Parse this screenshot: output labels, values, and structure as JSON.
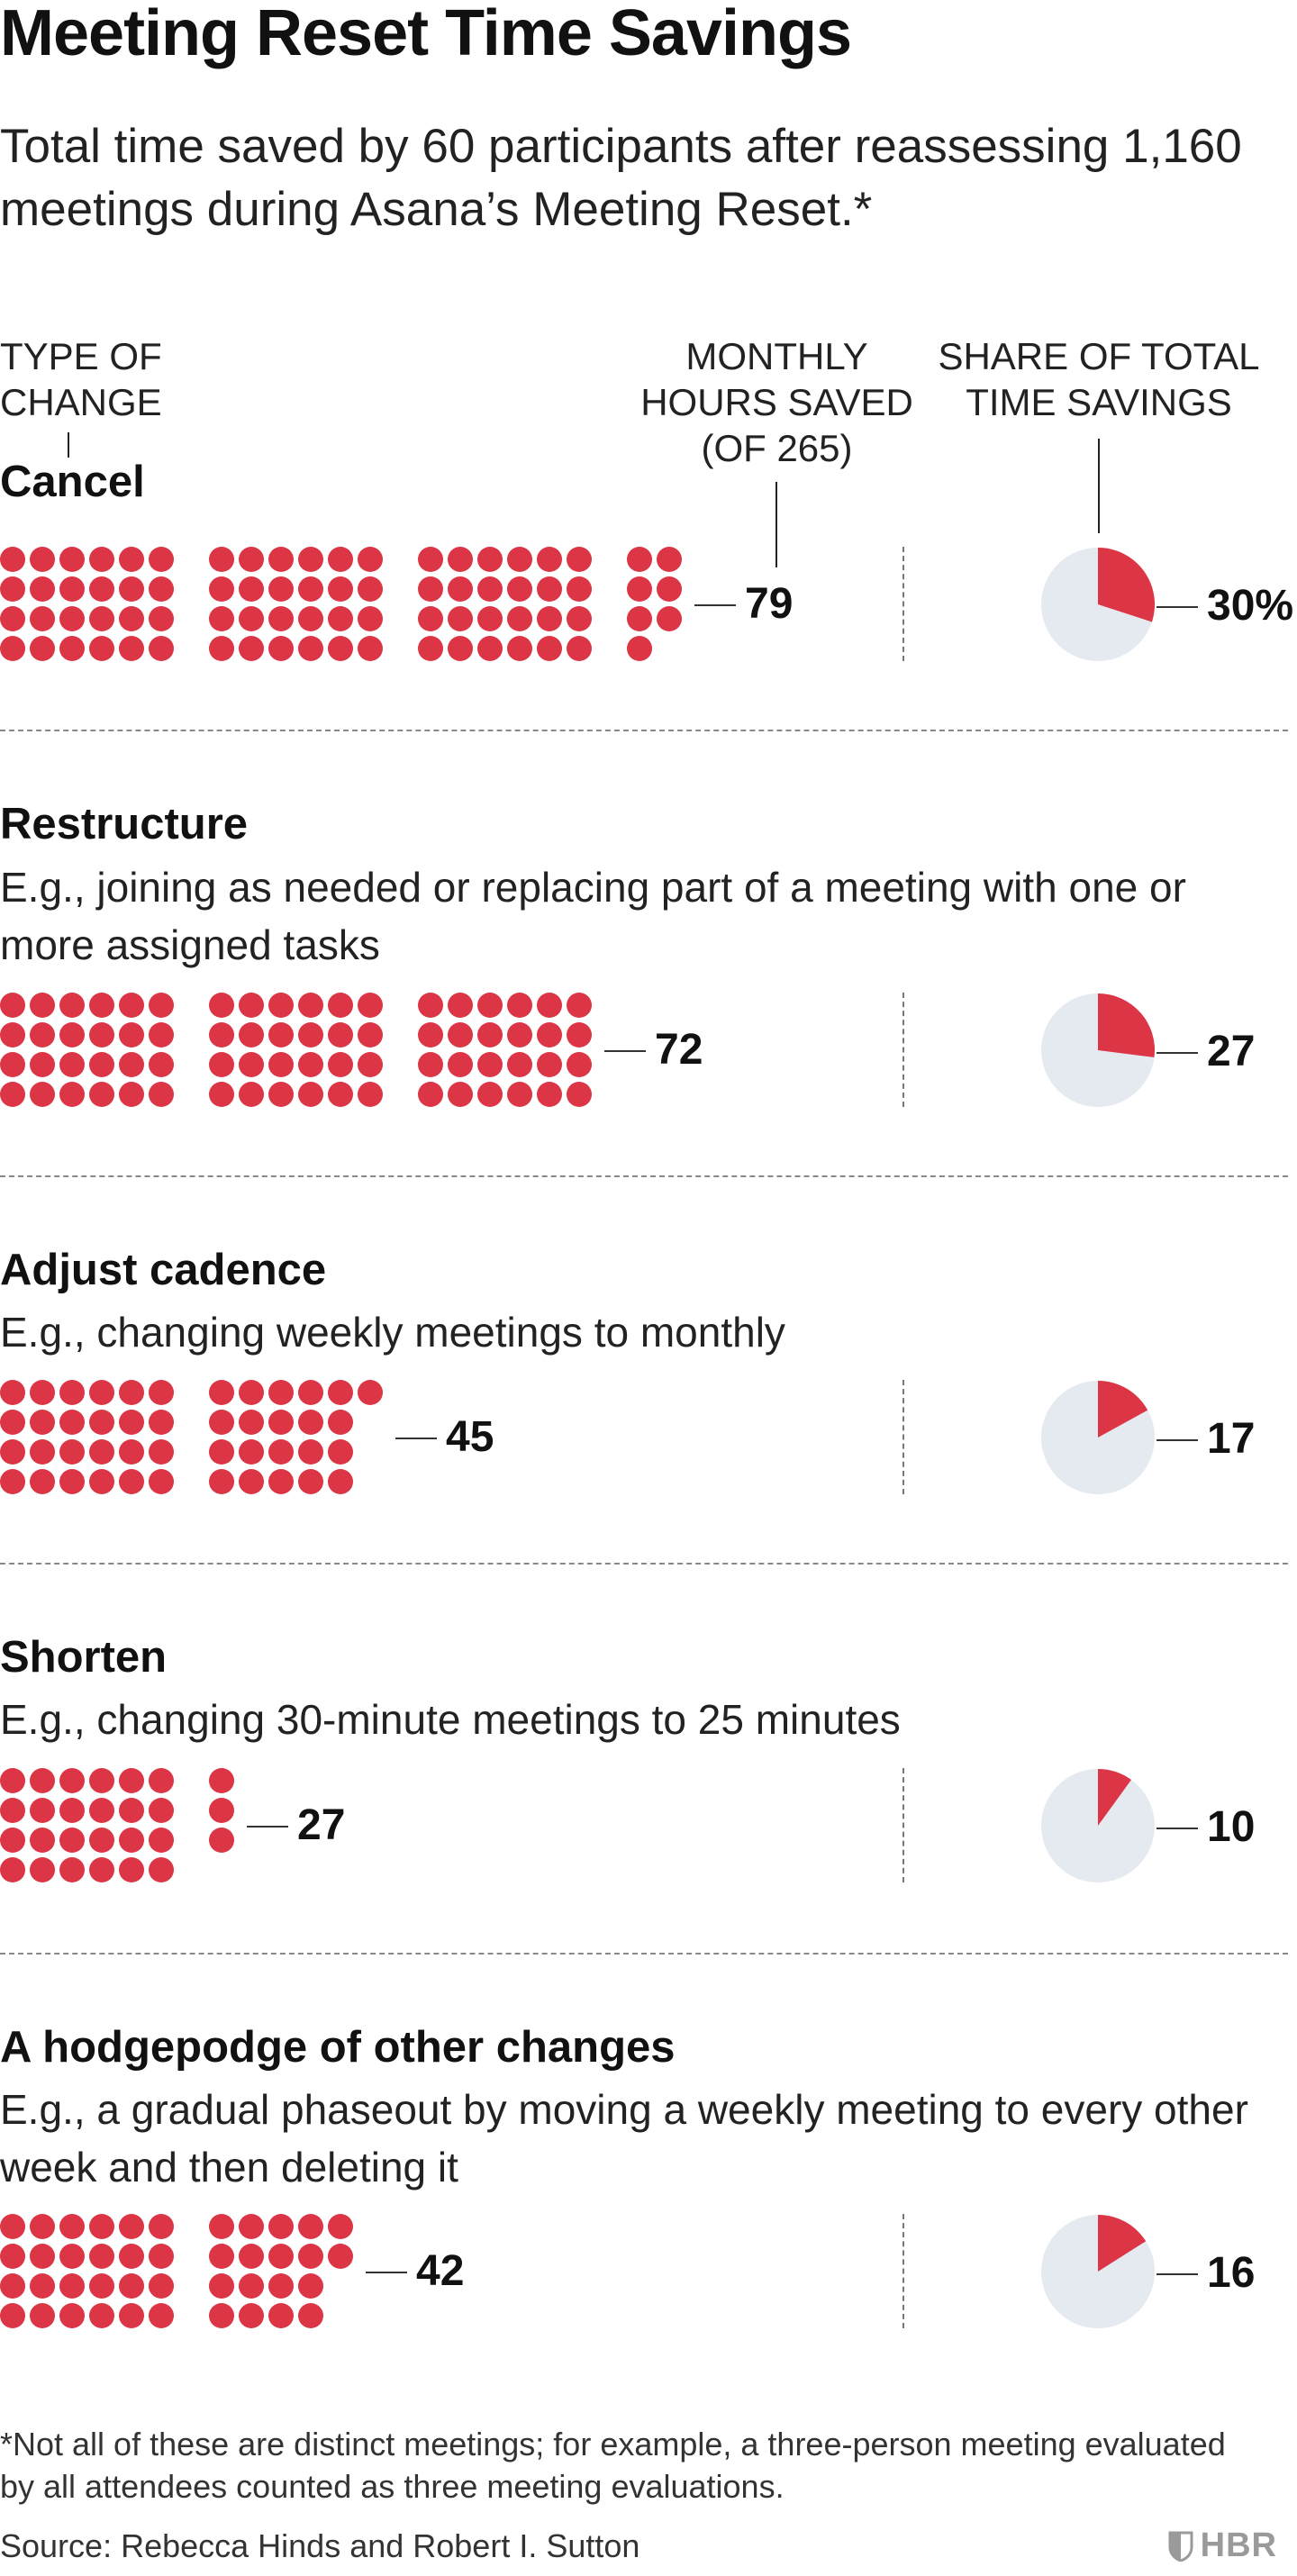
{
  "title": "Meeting Reset Time Savings",
  "subtitle": "Total time saved by 60 participants after reassessing 1,160 meetings during Asana’s Meeting Reset.*",
  "headers": {
    "type": "TYPE OF CHANGE",
    "hours": "MONTHLY HOURS SAVED (OF 265)",
    "share": "SHARE OF TOTAL TIME SAVINGS"
  },
  "chart_data": {
    "type": "table",
    "title": "Meeting Reset Time Savings",
    "subtitle": "Total time saved by 60 participants after reassessing 1,160 meetings during Asana’s Meeting Reset.*",
    "total_hours": 265,
    "columns": [
      "TYPE OF CHANGE",
      "MONTHLY HOURS SAVED (OF 265)",
      "SHARE OF TOTAL TIME SAVINGS"
    ],
    "rows": [
      {
        "label": "Cancel",
        "description": "",
        "hours": 79,
        "hours_label": "79",
        "share": 30,
        "share_label": "30%"
      },
      {
        "label": "Restructure",
        "description": "E.g., joining as needed or replacing part of a meeting with one or more assigned tasks",
        "hours": 72,
        "hours_label": "72",
        "share": 27,
        "share_label": "27"
      },
      {
        "label": "Adjust cadence",
        "description": "E.g., changing weekly meetings to monthly",
        "hours": 45,
        "hours_label": "45",
        "share": 17,
        "share_label": "17"
      },
      {
        "label": "Shorten",
        "description": "E.g., changing 30-minute meetings to 25 minutes",
        "hours": 27,
        "hours_label": "27",
        "share": 10,
        "share_label": "10"
      },
      {
        "label": "A hodgepodge of other changes",
        "description": "E.g., a gradual phaseout by moving a weekly meeting to every other week and then deleting it",
        "hours": 42,
        "hours_label": "42",
        "share": 16,
        "share_label": "16"
      }
    ],
    "colors": {
      "dot": "#dc3545",
      "pie_fill": "#dc3545",
      "pie_background": "#e5e9f0"
    }
  },
  "footnote": "*Not all of these are distinct meetings; for example, a three-person meeting evaluated by all attendees counted as three meeting evaluations.",
  "source": "Source: Rebecca Hinds and Robert I. Sutton",
  "logo": "HBR"
}
